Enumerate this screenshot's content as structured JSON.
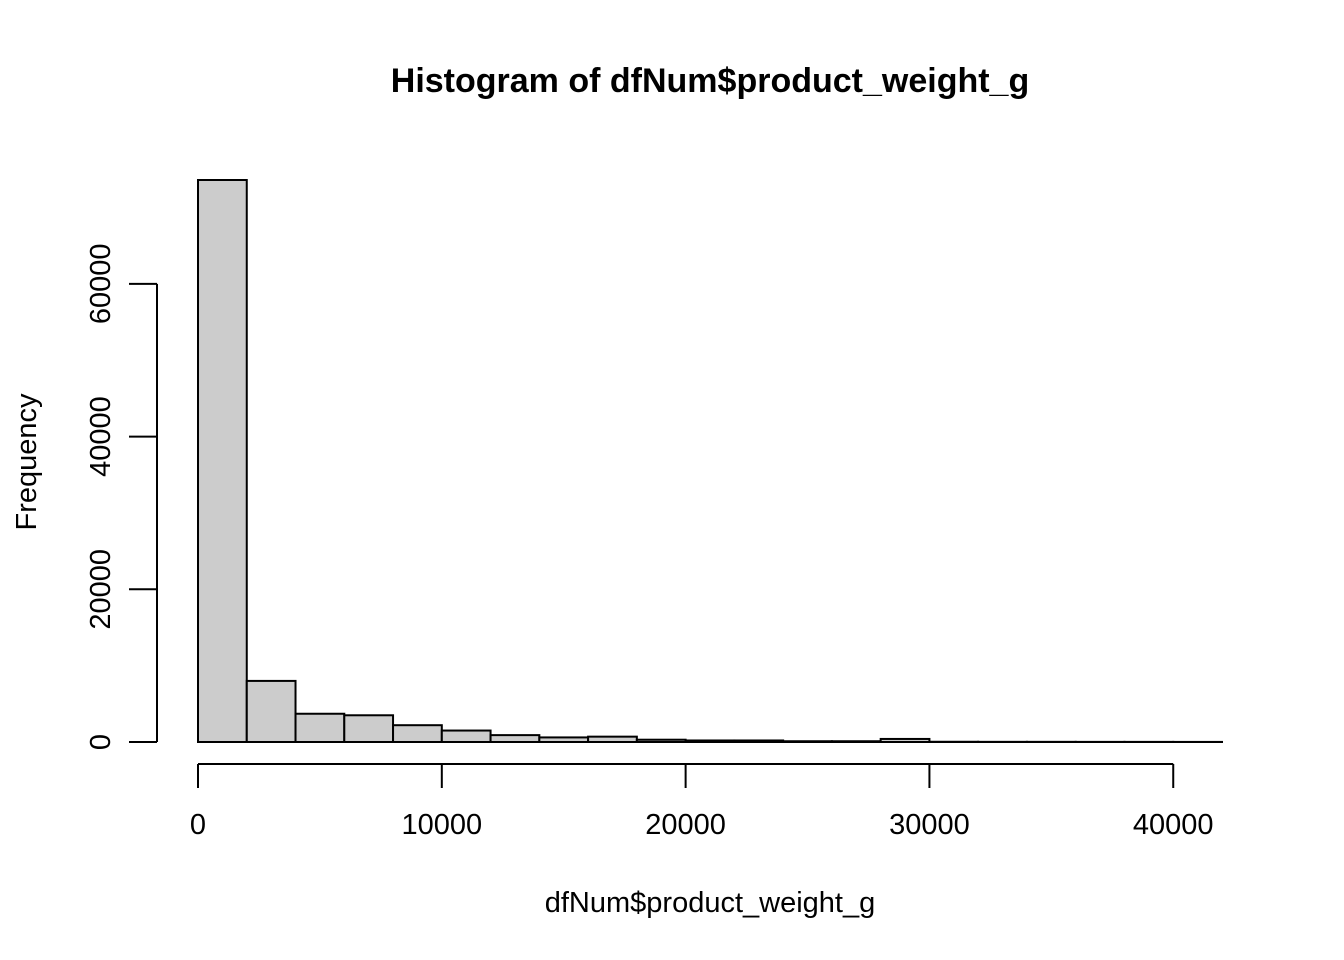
{
  "chart_data": {
    "type": "bar",
    "title": "Histogram of dfNum$product_weight_g",
    "xlabel": "dfNum$product_weight_g",
    "ylabel": "Frequency",
    "bin_width": 2000,
    "bins": [
      {
        "start": 0,
        "end": 2000,
        "count": 73600
      },
      {
        "start": 2000,
        "end": 4000,
        "count": 8000
      },
      {
        "start": 4000,
        "end": 6000,
        "count": 3700
      },
      {
        "start": 6000,
        "end": 8000,
        "count": 3500
      },
      {
        "start": 8000,
        "end": 10000,
        "count": 2200
      },
      {
        "start": 10000,
        "end": 12000,
        "count": 1500
      },
      {
        "start": 12000,
        "end": 14000,
        "count": 900
      },
      {
        "start": 14000,
        "end": 16000,
        "count": 600
      },
      {
        "start": 16000,
        "end": 18000,
        "count": 700
      },
      {
        "start": 18000,
        "end": 20000,
        "count": 300
      },
      {
        "start": 20000,
        "end": 22000,
        "count": 200
      },
      {
        "start": 22000,
        "end": 24000,
        "count": 200
      },
      {
        "start": 24000,
        "end": 26000,
        "count": 100
      },
      {
        "start": 26000,
        "end": 28000,
        "count": 100
      },
      {
        "start": 28000,
        "end": 30000,
        "count": 400
      },
      {
        "start": 30000,
        "end": 32000,
        "count": 30
      },
      {
        "start": 32000,
        "end": 34000,
        "count": 20
      },
      {
        "start": 34000,
        "end": 36000,
        "count": 20
      },
      {
        "start": 36000,
        "end": 38000,
        "count": 15
      },
      {
        "start": 38000,
        "end": 40000,
        "count": 15
      },
      {
        "start": 40000,
        "end": 42000,
        "count": 10
      }
    ],
    "xlim": [
      0,
      42000
    ],
    "ylim": [
      0,
      73600
    ],
    "x_ticks": [
      0,
      10000,
      20000,
      30000,
      40000
    ],
    "x_tick_labels": [
      "0",
      "10000",
      "20000",
      "30000",
      "40000"
    ],
    "y_ticks": [
      0,
      20000,
      40000,
      60000
    ],
    "y_tick_labels": [
      "0",
      "20000",
      "40000",
      "60000"
    ],
    "grid": false,
    "legend": "none",
    "colors": {
      "bar_fill": "#cccccc",
      "bar_stroke": "#000000",
      "axis": "#000000"
    }
  }
}
